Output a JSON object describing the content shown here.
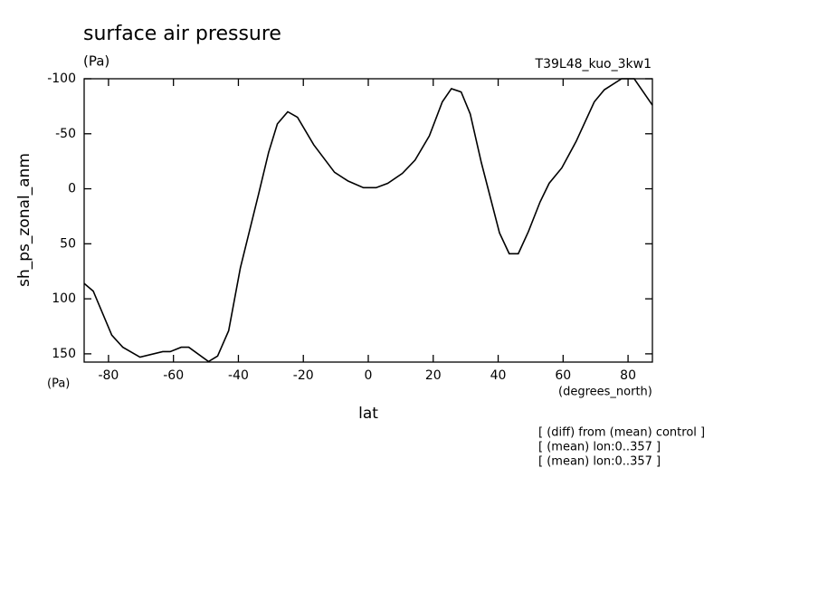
{
  "chart_data": {
    "type": "line",
    "title": "surface air pressure",
    "subtitle": "(Pa)",
    "run_label": "T39L48_kuo_3kw1",
    "y_label": "sh_ps_zonal_anm",
    "y_unit": "(Pa)",
    "x_label": "lat",
    "x_unit": "(degrees_north)",
    "annotations": [
      "[ (diff) from (mean) control ]",
      "[ (mean) lon:0..357 ]",
      "[ (mean) lon:0..357 ]"
    ],
    "x": [
      -87.5,
      -84.7,
      -79,
      -75.6,
      -70.3,
      -63.3,
      -61,
      -57.6,
      -55.3,
      -49.2,
      -46.4,
      -43,
      -39.4,
      -33.8,
      -30.7,
      -28,
      -24.8,
      -21.8,
      -16.8,
      -10.4,
      -6.2,
      -1.5,
      2.4,
      6,
      10.5,
      14.4,
      18.8,
      22.8,
      25.6,
      28.6,
      31.4,
      34.8,
      40.4,
      43.4,
      46.2,
      49.3,
      52.9,
      55.7,
      59.6,
      64,
      69.6,
      72.7,
      78,
      81.9,
      87.5
    ],
    "series": [
      {
        "name": "sh_ps_zonal_anm",
        "color": "#000000",
        "values": [
          86,
          93,
          133,
          144,
          153,
          148,
          148,
          144,
          144,
          157,
          152,
          129,
          72,
          5,
          -33,
          -59,
          -70,
          -65,
          -40,
          -15,
          -7,
          -1,
          -1,
          -5,
          -14,
          -26,
          -48,
          -79,
          -91,
          -88,
          -68,
          -24,
          40,
          59,
          59,
          39,
          12,
          -5,
          -19,
          -43,
          -79,
          -90,
          -100,
          -100,
          -76
        ]
      }
    ],
    "xlim": [
      -87.5,
      87.5
    ],
    "xticks": [
      -80,
      -60,
      -40,
      -20,
      0,
      20,
      40,
      60,
      80
    ],
    "ylim": [
      -100,
      157.5
    ],
    "yticks": [
      -100,
      -50,
      0,
      50,
      100,
      150
    ],
    "y_reversed": true,
    "grid": false
  }
}
